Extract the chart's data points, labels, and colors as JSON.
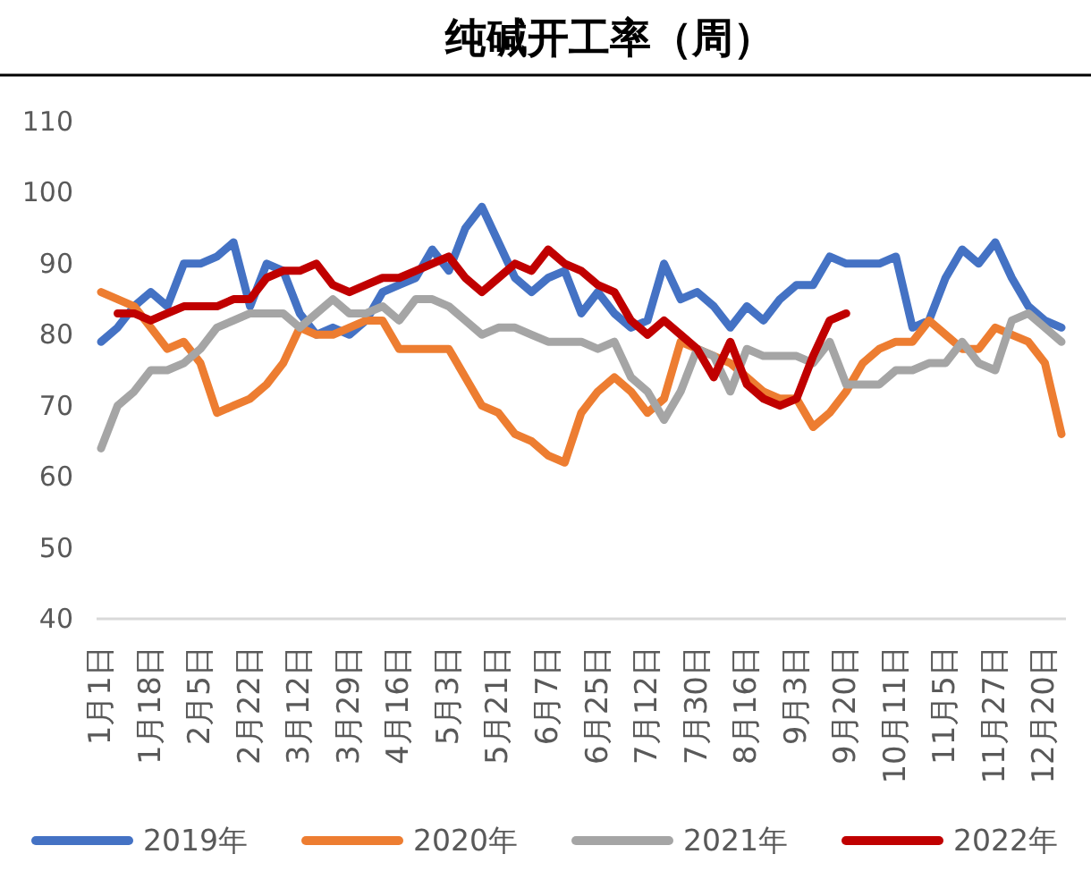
{
  "chart_data": {
    "type": "line",
    "title": "纯碱开工率（周）",
    "categories": [
      "1月1日",
      null,
      null,
      "1月18日",
      null,
      null,
      "2月5日",
      null,
      null,
      "2月22日",
      null,
      null,
      "3月12日",
      null,
      null,
      "3月29日",
      null,
      null,
      "4月16日",
      null,
      null,
      "5月3日",
      null,
      null,
      "5月21日",
      null,
      null,
      "6月7日",
      null,
      null,
      "6月25日",
      null,
      null,
      "7月12日",
      null,
      null,
      "7月30日",
      null,
      null,
      "8月16日",
      null,
      null,
      "9月3日",
      null,
      null,
      "9月20日",
      null,
      null,
      "10月11日",
      null,
      null,
      "11月5日",
      null,
      null,
      "11月27日",
      null,
      null,
      "12月20日",
      null
    ],
    "series": [
      {
        "name": "2019年",
        "color": "#4472c4",
        "values": [
          79,
          81,
          84,
          86,
          84,
          90,
          90,
          91,
          93,
          84,
          90,
          89,
          83,
          80,
          81,
          80,
          82,
          86,
          87,
          88,
          92,
          89,
          95,
          98,
          93,
          88,
          86,
          88,
          89,
          83,
          86,
          83,
          81,
          82,
          90,
          85,
          86,
          84,
          81,
          84,
          82,
          85,
          87,
          87,
          91,
          90,
          90,
          90,
          91,
          81,
          82,
          88,
          92,
          90,
          93,
          88,
          84,
          82,
          81
        ]
      },
      {
        "name": "2020年",
        "color": "#ed7d31",
        "values": [
          86,
          85,
          84,
          81,
          78,
          79,
          76,
          69,
          70,
          71,
          73,
          76,
          81,
          80,
          80,
          81,
          82,
          82,
          78,
          78,
          78,
          78,
          74,
          70,
          69,
          66,
          65,
          63,
          62,
          69,
          72,
          74,
          72,
          69,
          71,
          79,
          78,
          77,
          76,
          74,
          72,
          71,
          71,
          67,
          69,
          72,
          76,
          78,
          79,
          79,
          82,
          80,
          78,
          78,
          81,
          80,
          79,
          76,
          66
        ]
      },
      {
        "name": "2021年",
        "color": "#a5a5a5",
        "values": [
          64,
          70,
          72,
          75,
          75,
          76,
          78,
          81,
          82,
          83,
          83,
          83,
          81,
          83,
          85,
          83,
          83,
          84,
          82,
          85,
          85,
          84,
          82,
          80,
          81,
          81,
          80,
          79,
          79,
          79,
          78,
          79,
          74,
          72,
          68,
          72,
          78,
          77,
          72,
          78,
          77,
          77,
          77,
          76,
          79,
          73,
          73,
          73,
          75,
          75,
          76,
          76,
          79,
          76,
          75,
          82,
          83,
          81,
          79
        ]
      },
      {
        "name": "2022年",
        "color": "#c00000",
        "values": [
          null,
          83,
          83,
          82,
          83,
          84,
          84,
          84,
          85,
          85,
          88,
          89,
          89,
          90,
          87,
          86,
          87,
          88,
          88,
          89,
          90,
          91,
          88,
          86,
          88,
          90,
          89,
          92,
          90,
          89,
          87,
          86,
          82,
          80,
          82,
          80,
          78,
          74,
          79,
          73,
          71,
          70,
          71,
          77,
          82,
          83,
          null,
          null,
          null,
          null,
          null,
          null,
          null,
          null,
          null,
          null,
          null,
          null,
          null
        ]
      }
    ],
    "ylim": [
      40,
      110
    ],
    "yticks": [
      40,
      50,
      60,
      70,
      80,
      90,
      100,
      110
    ],
    "legend": "bottom"
  }
}
